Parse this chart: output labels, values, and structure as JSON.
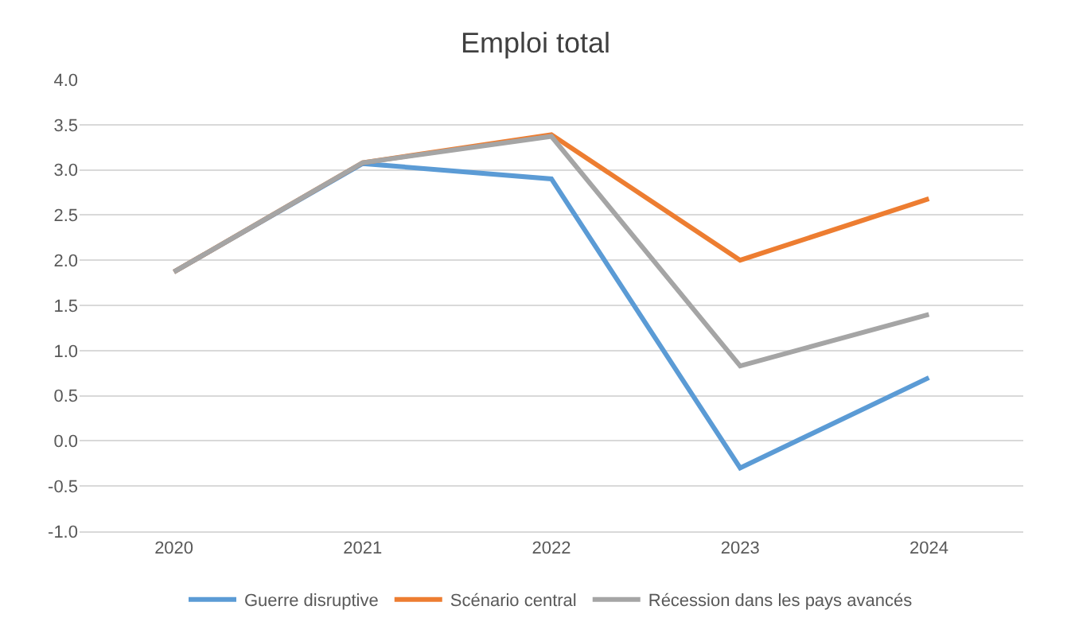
{
  "chart_data": {
    "type": "line",
    "title": "Emploi total",
    "categories": [
      "2020",
      "2021",
      "2022",
      "2023",
      "2024"
    ],
    "series": [
      {
        "name": "Guerre disruptive",
        "color": "#5b9bd5",
        "values": [
          1.87,
          3.07,
          2.9,
          -0.3,
          0.7
        ]
      },
      {
        "name": "Scénario central",
        "color": "#ed7d31",
        "values": [
          1.87,
          3.08,
          3.39,
          2.0,
          2.68
        ]
      },
      {
        "name": "Récession dans les pays avancés",
        "color": "#a5a5a5",
        "values": [
          1.87,
          3.08,
          3.37,
          0.83,
          1.4
        ]
      }
    ],
    "ylim": [
      -1.0,
      4.0
    ],
    "yticks": [
      {
        "value": -1,
        "label": "-1.0"
      },
      {
        "value": -0.5,
        "label": "-0.5"
      },
      {
        "value": 0,
        "label": "0.0"
      },
      {
        "value": 0.5,
        "label": "0.5"
      },
      {
        "value": 1,
        "label": "1.0"
      },
      {
        "value": 1.5,
        "label": "1.5"
      },
      {
        "value": 2,
        "label": "2.0"
      },
      {
        "value": 2.5,
        "label": "2.5"
      },
      {
        "value": 3,
        "label": "3.0"
      },
      {
        "value": 3.5,
        "label": "3.5"
      },
      {
        "value": 4,
        "label": "4.0"
      }
    ],
    "grid": "y",
    "legend": "bottom",
    "marker": "none",
    "line_style": "solid"
  }
}
